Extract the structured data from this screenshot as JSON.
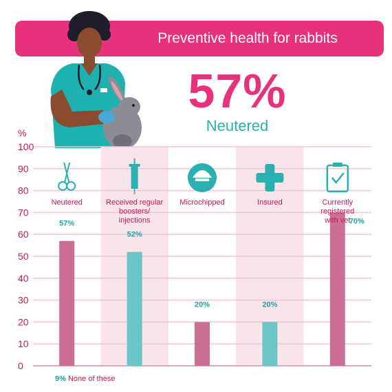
{
  "header": {
    "title": "Preventive health for rabbits"
  },
  "hero": {
    "value": "57%",
    "label": "Neutered"
  },
  "footnote": {
    "value": "9%",
    "label": "None of these"
  },
  "colors": {
    "pink": "#e8317b",
    "bar_pink": "#cc6f95",
    "bar_teal": "#6cc6c6",
    "band": "#f9e4ea",
    "grid": "#f1c6d4",
    "teal": "#1aa5a5"
  },
  "icons": [
    "scissors-icon",
    "syringe-icon",
    "microchip-icon",
    "plaster-icon",
    "clipboard-check-icon"
  ],
  "chart_data": {
    "type": "bar",
    "ylabel": "%",
    "ylim": [
      0,
      100
    ],
    "yticks": [
      0,
      10,
      20,
      30,
      40,
      50,
      60,
      70,
      80,
      90,
      100
    ],
    "categories": [
      "Neutered",
      "Received regular boosters/ injections",
      "Microchipped",
      "Insured",
      "Currently registered with vet"
    ],
    "category_lines": [
      [
        "Neutered"
      ],
      [
        "Received regular",
        "boosters/",
        "injections"
      ],
      [
        "Microchipped"
      ],
      [
        "Insured"
      ],
      [
        "Currently",
        "registered",
        "with vet"
      ]
    ],
    "values": [
      57,
      52,
      20,
      20,
      70
    ],
    "value_labels": [
      "57%",
      "52%",
      "20%",
      "20%",
      "70%"
    ],
    "bar_colors": [
      "#cc6f95",
      "#6cc6c6",
      "#cc6f95",
      "#6cc6c6",
      "#cc6f95"
    ],
    "grid": true
  }
}
